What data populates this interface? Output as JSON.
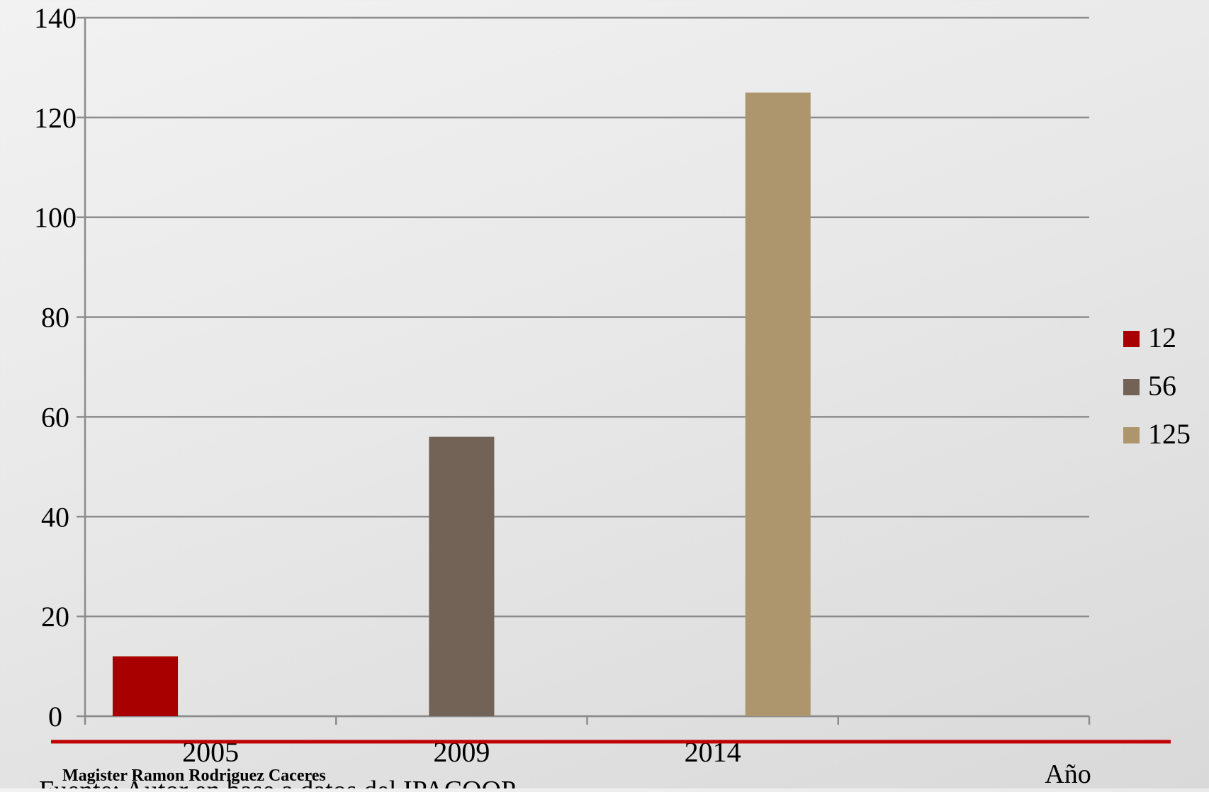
{
  "chart_data": {
    "type": "bar",
    "categories": [
      "2005",
      "2009",
      "2014",
      ""
    ],
    "series": [
      {
        "name": "12",
        "values": [
          12,
          null,
          null,
          null
        ],
        "color": "#a80000"
      },
      {
        "name": "56",
        "values": [
          null,
          56,
          null,
          null
        ],
        "color": "#736357"
      },
      {
        "name": "125",
        "values": [
          null,
          null,
          125,
          null
        ],
        "color": "#ad956e"
      }
    ],
    "title": "",
    "xlabel": "Año",
    "ylabel": "",
    "ylim": [
      0,
      140
    ],
    "yticks": [
      0,
      20,
      40,
      60,
      80,
      100,
      120,
      140
    ],
    "grid": true,
    "legend_position": "right"
  },
  "footer": {
    "author": "Magister Ramon Rodriguez Caceres",
    "source": "Fuente: Autor en base a datos del IPACOOP",
    "rule_color": "#c00000"
  }
}
